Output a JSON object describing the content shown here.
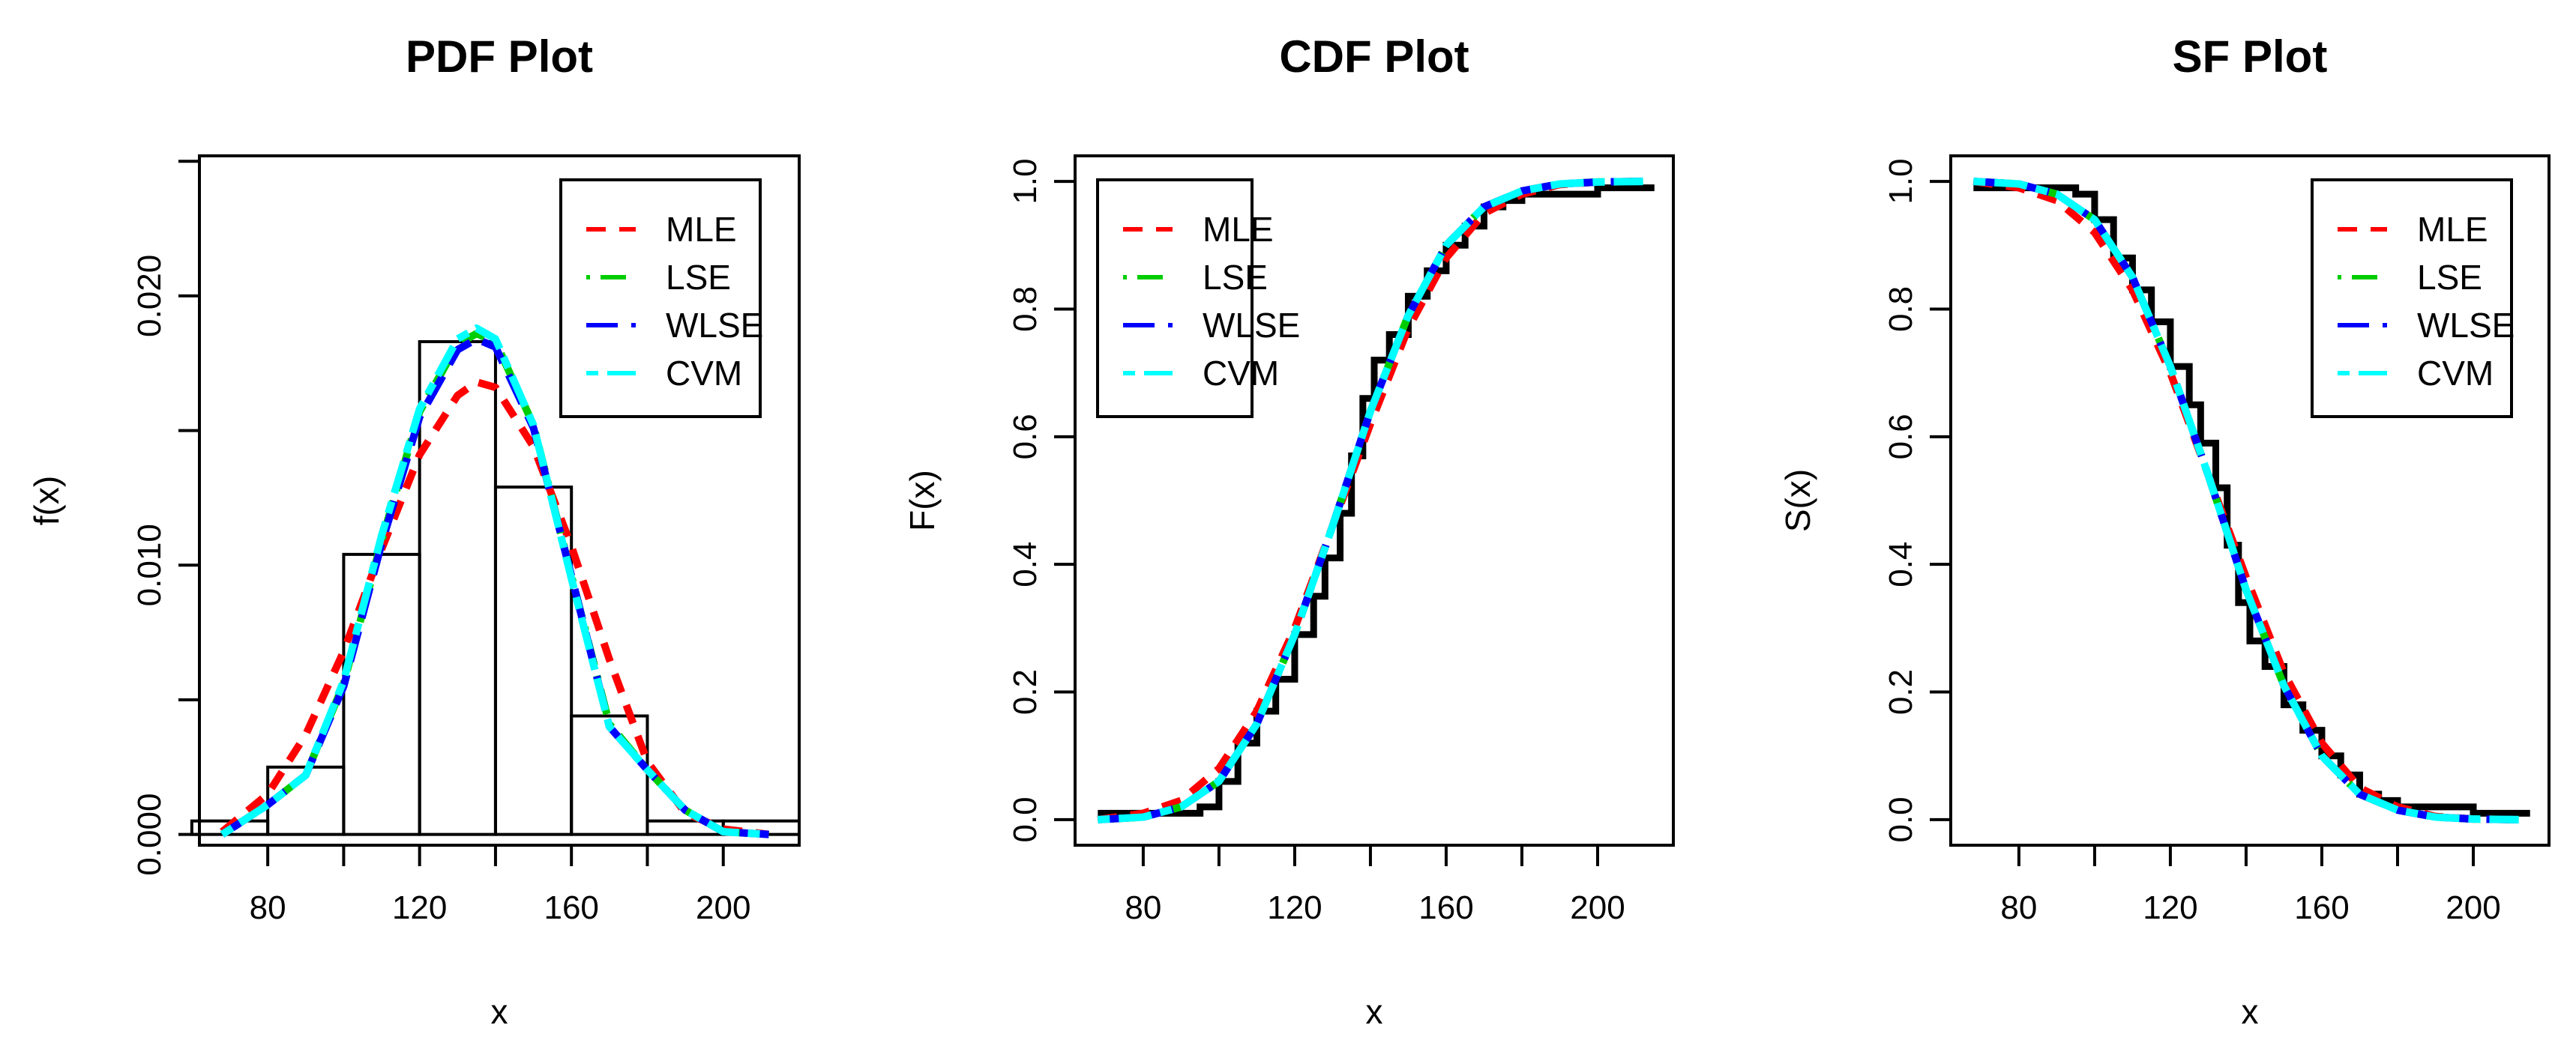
{
  "chart_data": [
    {
      "type": "line",
      "title": "PDF Plot",
      "xlabel": "x",
      "ylabel": "f(x)",
      "xlim": [
        62,
        220
      ],
      "ylim": [
        -0.0004,
        0.0252
      ],
      "x_ticks": [
        80,
        120,
        160,
        200
      ],
      "x_tick_labels": [
        "80",
        "120",
        "160",
        "200"
      ],
      "x_ticks_unlabeled": [
        100,
        140,
        180
      ],
      "y_ticks": [
        0,
        0.005,
        0.01,
        0.015,
        0.02,
        0.025
      ],
      "y_tick_labels": [
        "0.000",
        "",
        "0.010",
        "",
        "0.020",
        ""
      ],
      "histogram": {
        "bin_edges": [
          60,
          80,
          100,
          120,
          140,
          160,
          180,
          200,
          220
        ],
        "densities": [
          0.0005,
          0.0025,
          0.0104,
          0.0183,
          0.0129,
          0.0044,
          0.0005,
          0.0005
        ]
      },
      "series": [
        {
          "name": "MLE",
          "color": "#ff0000",
          "dash": "dashed",
          "x": [
            68,
            80,
            90,
            100,
            110,
            120,
            130,
            135,
            140,
            150,
            160,
            170,
            180,
            190,
            200,
            212
          ],
          "y": [
            0.0001,
            0.0015,
            0.0037,
            0.0068,
            0.0106,
            0.0141,
            0.0163,
            0.0168,
            0.0166,
            0.0144,
            0.0107,
            0.0065,
            0.0027,
            0.0008,
            0.0002,
            0.0
          ]
        },
        {
          "name": "LSE",
          "color": "#00cd00",
          "dash": "dotdash",
          "x": [
            68,
            80,
            90,
            100,
            110,
            120,
            130,
            135,
            140,
            150,
            160,
            170,
            180,
            190,
            200,
            212
          ],
          "y": [
            0.0,
            0.0011,
            0.0022,
            0.0056,
            0.0109,
            0.0157,
            0.0182,
            0.0186,
            0.0183,
            0.0152,
            0.0096,
            0.0041,
            0.0024,
            0.0009,
            0.0001,
            0.0
          ]
        },
        {
          "name": "WLSE",
          "color": "#0000ff",
          "dash": "longdash",
          "x": [
            68,
            80,
            90,
            100,
            110,
            120,
            130,
            135,
            140,
            150,
            160,
            170,
            180,
            190,
            200,
            212
          ],
          "y": [
            0.0,
            0.0011,
            0.0022,
            0.0055,
            0.0108,
            0.0155,
            0.018,
            0.0184,
            0.0181,
            0.0151,
            0.0096,
            0.004,
            0.0024,
            0.0009,
            0.0001,
            0.0
          ]
        },
        {
          "name": "CVM",
          "color": "#00ffff",
          "dash": "twodash",
          "x": [
            68,
            80,
            90,
            100,
            110,
            120,
            130,
            135,
            140,
            150,
            160,
            170,
            180,
            190,
            200,
            212
          ],
          "y": [
            0.0,
            0.0011,
            0.0022,
            0.0057,
            0.0111,
            0.0158,
            0.0184,
            0.0188,
            0.0184,
            0.0152,
            0.0095,
            0.004,
            0.0024,
            0.0009,
            0.0001,
            0.0
          ]
        }
      ],
      "legend": {
        "position": "top-right",
        "entries": [
          "MLE",
          "LSE",
          "WLSE",
          "CVM"
        ]
      }
    },
    {
      "type": "line",
      "title": "CDF Plot",
      "xlabel": "x",
      "ylabel": "F(x)",
      "xlim": [
        62,
        220
      ],
      "ylim": [
        -0.04,
        1.04
      ],
      "x_ticks": [
        80,
        120,
        160,
        200
      ],
      "x_tick_labels": [
        "80",
        "120",
        "160",
        "200"
      ],
      "x_ticks_unlabeled": [
        100,
        140,
        180
      ],
      "y_ticks": [
        0,
        0.2,
        0.4,
        0.6,
        0.8,
        1.0
      ],
      "y_tick_labels": [
        "0.0",
        "0.2",
        "0.4",
        "0.6",
        "0.8",
        "1.0"
      ],
      "empirical_step": {
        "x": [
          68,
          78,
          88,
          95,
          100,
          105,
          110,
          115,
          120,
          125,
          128,
          132,
          135,
          138,
          141,
          145,
          150,
          155,
          160,
          165,
          170,
          175,
          180,
          185,
          190,
          200,
          215
        ],
        "y": [
          0.01,
          0.01,
          0.01,
          0.02,
          0.06,
          0.12,
          0.17,
          0.22,
          0.29,
          0.35,
          0.41,
          0.48,
          0.57,
          0.66,
          0.72,
          0.76,
          0.82,
          0.86,
          0.9,
          0.93,
          0.96,
          0.97,
          0.98,
          0.98,
          0.98,
          0.99,
          0.99
        ]
      },
      "series": [
        {
          "name": "MLE",
          "color": "#ff0000",
          "dash": "dashed",
          "x": [
            68,
            80,
            90,
            100,
            110,
            120,
            130,
            140,
            150,
            160,
            170,
            180,
            190,
            200,
            212
          ],
          "y": [
            0.0,
            0.01,
            0.03,
            0.08,
            0.17,
            0.3,
            0.46,
            0.62,
            0.77,
            0.88,
            0.95,
            0.98,
            0.995,
            0.999,
            1.0
          ]
        },
        {
          "name": "LSE",
          "color": "#00cd00",
          "dash": "dotdash",
          "x": [
            68,
            80,
            90,
            100,
            110,
            120,
            130,
            140,
            150,
            160,
            170,
            180,
            190,
            200,
            212
          ],
          "y": [
            0.0,
            0.004,
            0.02,
            0.06,
            0.15,
            0.29,
            0.46,
            0.64,
            0.79,
            0.9,
            0.96,
            0.985,
            0.996,
            0.999,
            1.0
          ]
        },
        {
          "name": "WLSE",
          "color": "#0000ff",
          "dash": "longdash",
          "x": [
            68,
            80,
            90,
            100,
            110,
            120,
            130,
            140,
            150,
            160,
            170,
            180,
            190,
            200,
            212
          ],
          "y": [
            0.0,
            0.004,
            0.02,
            0.06,
            0.15,
            0.29,
            0.46,
            0.64,
            0.79,
            0.9,
            0.96,
            0.985,
            0.996,
            0.999,
            1.0
          ]
        },
        {
          "name": "CVM",
          "color": "#00ffff",
          "dash": "twodash",
          "x": [
            68,
            80,
            90,
            100,
            110,
            120,
            130,
            140,
            150,
            160,
            170,
            180,
            190,
            200,
            212
          ],
          "y": [
            0.0,
            0.004,
            0.02,
            0.06,
            0.15,
            0.29,
            0.46,
            0.64,
            0.79,
            0.9,
            0.96,
            0.985,
            0.996,
            0.999,
            1.0
          ]
        }
      ],
      "legend": {
        "position": "top-left",
        "entries": [
          "MLE",
          "LSE",
          "WLSE",
          "CVM"
        ]
      }
    },
    {
      "type": "line",
      "title": "SF Plot",
      "xlabel": "x",
      "ylabel": "S(x)",
      "xlim": [
        62,
        220
      ],
      "ylim": [
        -0.04,
        1.04
      ],
      "x_ticks": [
        80,
        120,
        160,
        200
      ],
      "x_tick_labels": [
        "80",
        "120",
        "160",
        "200"
      ],
      "x_ticks_unlabeled": [
        100,
        140,
        180
      ],
      "y_ticks": [
        0,
        0.2,
        0.4,
        0.6,
        0.8,
        1.0
      ],
      "y_tick_labels": [
        "0.0",
        "0.2",
        "0.4",
        "0.6",
        "0.8",
        "1.0"
      ],
      "empirical_step": {
        "x": [
          68,
          78,
          88,
          95,
          100,
          105,
          110,
          115,
          120,
          125,
          128,
          132,
          135,
          138,
          141,
          145,
          150,
          155,
          160,
          165,
          170,
          175,
          180,
          185,
          190,
          200,
          215
        ],
        "y": [
          0.99,
          0.99,
          0.99,
          0.98,
          0.94,
          0.88,
          0.83,
          0.78,
          0.71,
          0.65,
          0.59,
          0.52,
          0.43,
          0.34,
          0.28,
          0.24,
          0.18,
          0.14,
          0.1,
          0.07,
          0.04,
          0.03,
          0.02,
          0.02,
          0.02,
          0.01,
          0.01
        ]
      },
      "series": [
        {
          "name": "MLE",
          "color": "#ff0000",
          "dash": "dashed",
          "x": [
            68,
            80,
            90,
            100,
            110,
            120,
            130,
            140,
            150,
            160,
            170,
            180,
            190,
            200,
            212
          ],
          "y": [
            1.0,
            0.99,
            0.97,
            0.92,
            0.83,
            0.7,
            0.54,
            0.38,
            0.23,
            0.12,
            0.05,
            0.02,
            0.005,
            0.001,
            0.0
          ]
        },
        {
          "name": "LSE",
          "color": "#00cd00",
          "dash": "dotdash",
          "x": [
            68,
            80,
            90,
            100,
            110,
            120,
            130,
            140,
            150,
            160,
            170,
            180,
            190,
            200,
            212
          ],
          "y": [
            1.0,
            0.996,
            0.98,
            0.94,
            0.85,
            0.71,
            0.54,
            0.36,
            0.21,
            0.1,
            0.04,
            0.015,
            0.004,
            0.001,
            0.0
          ]
        },
        {
          "name": "WLSE",
          "color": "#0000ff",
          "dash": "longdash",
          "x": [
            68,
            80,
            90,
            100,
            110,
            120,
            130,
            140,
            150,
            160,
            170,
            180,
            190,
            200,
            212
          ],
          "y": [
            1.0,
            0.996,
            0.98,
            0.94,
            0.85,
            0.71,
            0.54,
            0.36,
            0.21,
            0.1,
            0.04,
            0.015,
            0.004,
            0.001,
            0.0
          ]
        },
        {
          "name": "CVM",
          "color": "#00ffff",
          "dash": "twodash",
          "x": [
            68,
            80,
            90,
            100,
            110,
            120,
            130,
            140,
            150,
            160,
            170,
            180,
            190,
            200,
            212
          ],
          "y": [
            1.0,
            0.996,
            0.98,
            0.94,
            0.85,
            0.71,
            0.54,
            0.36,
            0.21,
            0.1,
            0.04,
            0.015,
            0.004,
            0.001,
            0.0
          ]
        }
      ],
      "legend": {
        "position": "top-right",
        "entries": [
          "MLE",
          "LSE",
          "WLSE",
          "CVM"
        ]
      }
    }
  ]
}
